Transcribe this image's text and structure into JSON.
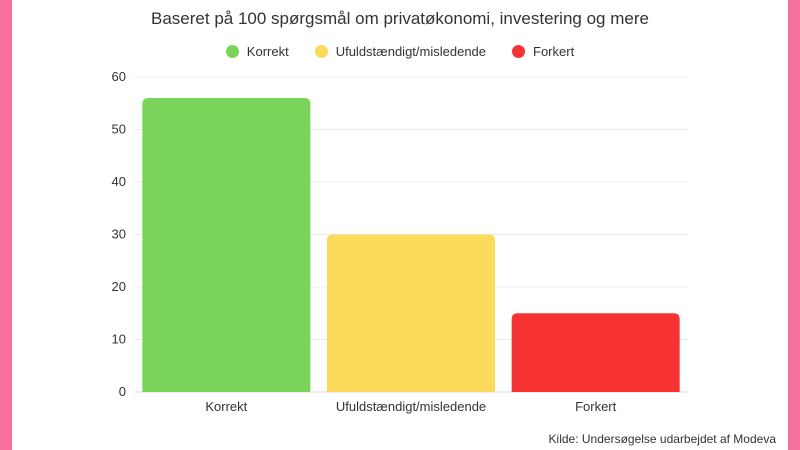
{
  "chart_data": {
    "type": "bar",
    "title": "Baseret på 100 spørgsmål om privatøkonomi, investering og mere",
    "categories": [
      "Korrekt",
      "Ufuldstændigt/misledende",
      "Forkert"
    ],
    "values": [
      56,
      30,
      15
    ],
    "colors": [
      "#7ad45a",
      "#fcdb5c",
      "#f73233"
    ],
    "legend": {
      "position": "top",
      "entries": [
        "Korrekt",
        "Ufuldstændigt/misledende",
        "Forkert"
      ]
    },
    "ylim": [
      0,
      60
    ],
    "yticks": [
      "0",
      "10",
      "20",
      "30",
      "40",
      "50",
      "60"
    ],
    "grid": true,
    "xlabel": "",
    "ylabel": ""
  },
  "source": "Kilde: Undersøgelse udarbejdet af Modeva"
}
